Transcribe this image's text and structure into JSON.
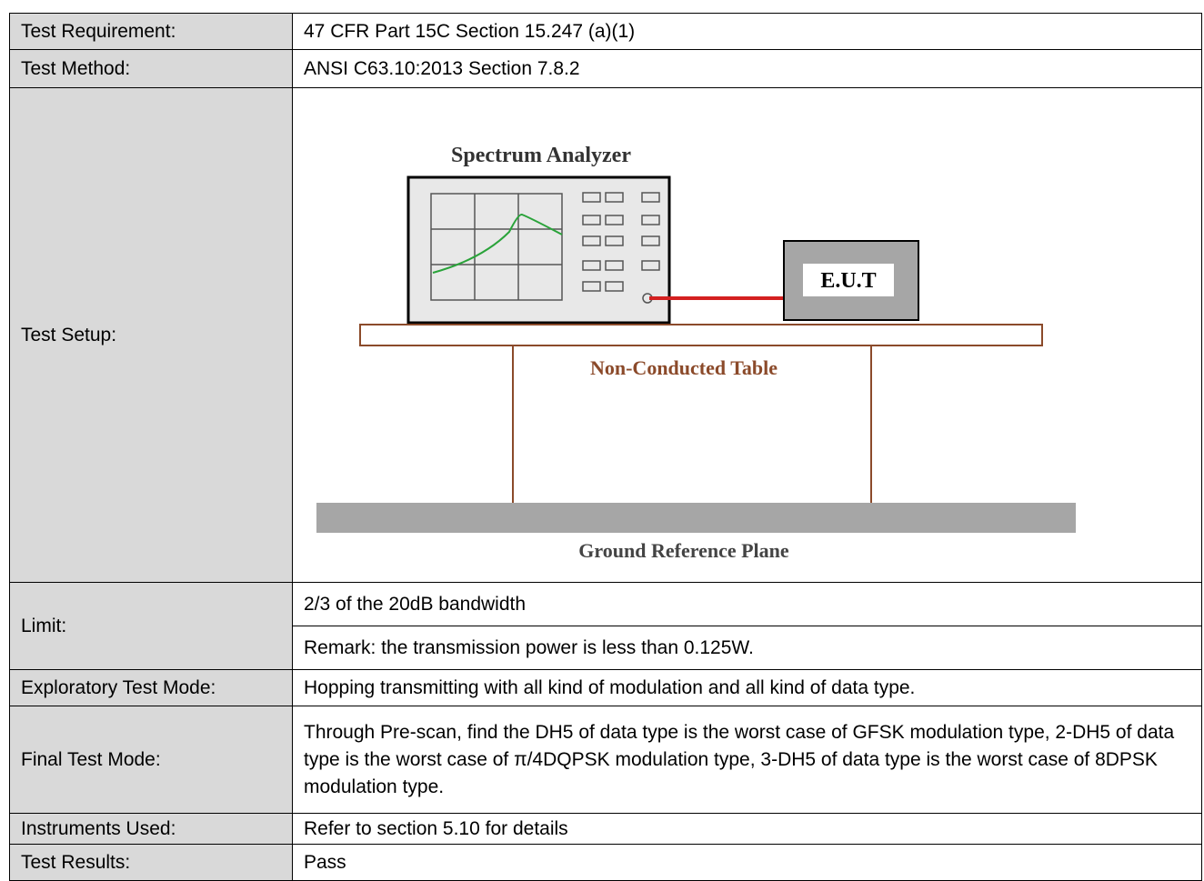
{
  "table": {
    "rows": [
      [
        "Test Requirement:",
        "47 CFR Part 15C Section 15.247 (a)(1)"
      ],
      [
        "Test Method:",
        "ANSI C63.10:2013 Section 7.8.2"
      ],
      [
        "Test Setup:"
      ],
      [
        "Limit:",
        "2/3 of the 20dB bandwidth",
        "Remark: the transmission power is less than 0.125W."
      ],
      [
        "Exploratory Test Mode:",
        "Hopping transmitting with all kind of modulation and all kind of data type."
      ],
      [
        "Final Test Mode:",
        "Through Pre-scan, find the DH5 of data type is the worst case of GFSK modulation type, 2-DH5 of data type is the worst case of π/4DQPSK modulation type, 3-DH5 of data type is the worst case of 8DPSK modulation type."
      ],
      [
        "Instruments Used:",
        "Refer to section 5.10 for details"
      ],
      [
        "Test Results:",
        "Pass"
      ]
    ]
  },
  "diagram": {
    "analyzer_label": "Spectrum Analyzer",
    "eut_label": "E.U.T",
    "table_label": "Non-Conducted Table",
    "ground_label": "Ground Reference Plane"
  }
}
